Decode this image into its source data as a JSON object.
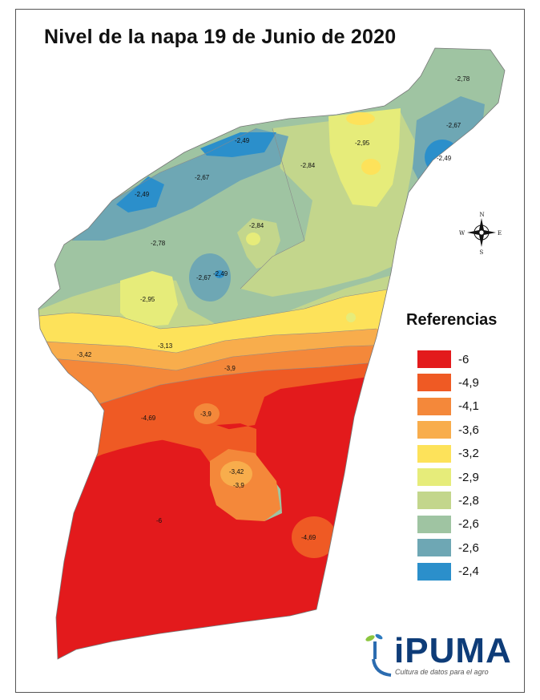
{
  "title": "Nivel de la napa 19 de Junio de 2020",
  "legend": {
    "title": "Referencias",
    "items": [
      {
        "label": "-6",
        "color": "#e31a1c"
      },
      {
        "label": "-4,9",
        "color": "#ef5a24"
      },
      {
        "label": "-4,1",
        "color": "#f4883a"
      },
      {
        "label": "-3,6",
        "color": "#f8ad4c"
      },
      {
        "label": "-3,2",
        "color": "#fde25a"
      },
      {
        "label": "-2,9",
        "color": "#e6ec7a"
      },
      {
        "label": "-2,8",
        "color": "#c3d68c"
      },
      {
        "label": "-2,6",
        "color": "#9fc4a2"
      },
      {
        "label": "-2,6",
        "color": "#6ea7b4"
      },
      {
        "label": "-2,4",
        "color": "#2b8fcb"
      }
    ]
  },
  "contour_labels": [
    "-2,78",
    "-2,67",
    "-2,49",
    "-2,95",
    "-2,84",
    "-2,49",
    "-2,67",
    "-2,49",
    "-2,84",
    "-2,78",
    "-2,49",
    "-2,67",
    "-2,95",
    "-3,13",
    "-3,42",
    "-3,9",
    "-4,69",
    "-3,9",
    "-3,42",
    "-3,9",
    "-6",
    "-4,69"
  ],
  "compass": {
    "n": "N",
    "s": "S",
    "e": "E",
    "w": "W",
    "icon": "compass-rose-icon"
  },
  "logo": {
    "word": "iPUMA",
    "tagline": "Cultura de datos para el agro",
    "icon": "sprout-icon"
  }
}
